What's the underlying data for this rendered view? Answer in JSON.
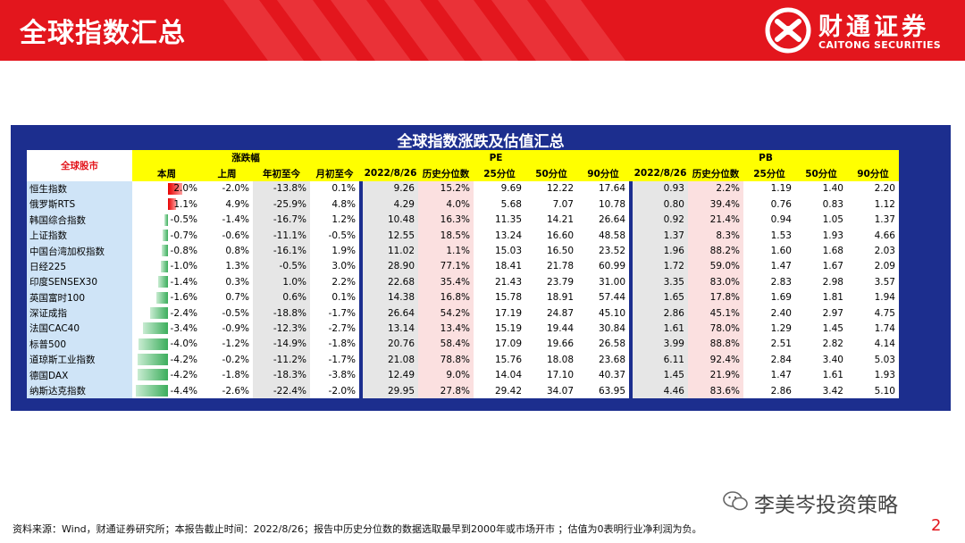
{
  "header": {
    "title": "全球指数汇总"
  },
  "logo": {
    "cn": "财通证券",
    "en": "CAITONG SECURITIES"
  },
  "panel": {
    "title": "全球指数涨跌及估值汇总"
  },
  "table": {
    "name_header": "全球股市",
    "group_change": "涨跌幅",
    "group_pe": "PE",
    "group_pb": "PB",
    "sub_change": [
      "本周",
      "上周",
      "年初至今",
      "月初至今"
    ],
    "sub_pe": [
      "2022/8/26",
      "历史分位数",
      "25分位",
      "50分位",
      "90分位"
    ],
    "sub_pb": [
      "2022/8/26",
      "历史分位数",
      "25分位",
      "50分位",
      "90分位"
    ],
    "rows": [
      {
        "name": "恒生指数",
        "bar": 2.0,
        "week": "2.0%",
        "prev": "-2.0%",
        "ytd": "-13.8%",
        "mtd": "0.1%",
        "pe": [
          "9.26",
          "15.2%",
          "9.69",
          "12.22",
          "17.64"
        ],
        "pb": [
          "0.93",
          "2.2%",
          "1.19",
          "1.40",
          "2.20"
        ]
      },
      {
        "name": "俄罗斯RTS",
        "bar": 1.1,
        "week": "1.1%",
        "prev": "4.9%",
        "ytd": "-25.9%",
        "mtd": "4.8%",
        "pe": [
          "4.29",
          "4.0%",
          "5.68",
          "7.07",
          "10.78"
        ],
        "pb": [
          "0.80",
          "39.4%",
          "0.76",
          "0.83",
          "1.12"
        ]
      },
      {
        "name": "韩国综合指数",
        "bar": -0.5,
        "week": "-0.5%",
        "prev": "-1.4%",
        "ytd": "-16.7%",
        "mtd": "1.2%",
        "pe": [
          "10.48",
          "16.3%",
          "11.35",
          "14.21",
          "26.64"
        ],
        "pb": [
          "0.92",
          "21.4%",
          "0.94",
          "1.05",
          "1.37"
        ]
      },
      {
        "name": "上证指数",
        "bar": -0.7,
        "week": "-0.7%",
        "prev": "-0.6%",
        "ytd": "-11.1%",
        "mtd": "-0.5%",
        "pe": [
          "12.55",
          "18.5%",
          "13.24",
          "16.60",
          "48.58"
        ],
        "pb": [
          "1.37",
          "8.3%",
          "1.53",
          "1.93",
          "4.66"
        ]
      },
      {
        "name": "中国台湾加权指数",
        "bar": -0.8,
        "week": "-0.8%",
        "prev": "0.8%",
        "ytd": "-16.1%",
        "mtd": "1.9%",
        "pe": [
          "11.02",
          "1.1%",
          "15.03",
          "16.50",
          "23.52"
        ],
        "pb": [
          "1.96",
          "88.2%",
          "1.60",
          "1.68",
          "2.03"
        ]
      },
      {
        "name": "日经225",
        "bar": -1.0,
        "week": "-1.0%",
        "prev": "1.3%",
        "ytd": "-0.5%",
        "mtd": "3.0%",
        "pe": [
          "28.90",
          "77.1%",
          "18.41",
          "21.78",
          "60.99"
        ],
        "pb": [
          "1.72",
          "59.0%",
          "1.47",
          "1.67",
          "2.09"
        ]
      },
      {
        "name": "印度SENSEX30",
        "bar": -1.4,
        "week": "-1.4%",
        "prev": "0.3%",
        "ytd": "1.0%",
        "mtd": "2.2%",
        "pe": [
          "22.68",
          "35.4%",
          "21.43",
          "23.79",
          "31.00"
        ],
        "pb": [
          "3.35",
          "83.0%",
          "2.83",
          "2.98",
          "3.57"
        ]
      },
      {
        "name": "英国富时100",
        "bar": -1.6,
        "week": "-1.6%",
        "prev": "0.7%",
        "ytd": "0.6%",
        "mtd": "0.1%",
        "pe": [
          "14.38",
          "16.8%",
          "15.78",
          "18.91",
          "57.44"
        ],
        "pb": [
          "1.65",
          "17.8%",
          "1.69",
          "1.81",
          "1.94"
        ]
      },
      {
        "name": "深证成指",
        "bar": -2.4,
        "week": "-2.4%",
        "prev": "-0.5%",
        "ytd": "-18.8%",
        "mtd": "-1.7%",
        "pe": [
          "26.64",
          "54.2%",
          "17.19",
          "24.87",
          "45.10"
        ],
        "pb": [
          "2.86",
          "45.1%",
          "2.40",
          "2.97",
          "4.75"
        ]
      },
      {
        "name": "法国CAC40",
        "bar": -3.4,
        "week": "-3.4%",
        "prev": "-0.9%",
        "ytd": "-12.3%",
        "mtd": "-2.7%",
        "pe": [
          "13.14",
          "13.4%",
          "15.19",
          "19.44",
          "30.84"
        ],
        "pb": [
          "1.61",
          "78.0%",
          "1.29",
          "1.45",
          "1.74"
        ]
      },
      {
        "name": "标普500",
        "bar": -4.0,
        "week": "-4.0%",
        "prev": "-1.2%",
        "ytd": "-14.9%",
        "mtd": "-1.8%",
        "pe": [
          "20.76",
          "58.4%",
          "17.09",
          "19.66",
          "26.58"
        ],
        "pb": [
          "3.99",
          "88.8%",
          "2.51",
          "2.82",
          "4.14"
        ]
      },
      {
        "name": "道琼斯工业指数",
        "bar": -4.2,
        "week": "-4.2%",
        "prev": "-0.2%",
        "ytd": "-11.2%",
        "mtd": "-1.7%",
        "pe": [
          "21.08",
          "78.8%",
          "15.76",
          "18.08",
          "23.68"
        ],
        "pb": [
          "6.11",
          "92.4%",
          "2.84",
          "3.40",
          "5.03"
        ]
      },
      {
        "name": "德国DAX",
        "bar": -4.2,
        "week": "-4.2%",
        "prev": "-1.8%",
        "ytd": "-18.3%",
        "mtd": "-3.8%",
        "pe": [
          "12.49",
          "9.0%",
          "14.04",
          "17.10",
          "40.37"
        ],
        "pb": [
          "1.45",
          "21.9%",
          "1.47",
          "1.61",
          "1.93"
        ]
      },
      {
        "name": "纳斯达克指数",
        "bar": -4.4,
        "week": "-4.4%",
        "prev": "-2.6%",
        "ytd": "-22.4%",
        "mtd": "-2.0%",
        "pe": [
          "29.95",
          "27.8%",
          "29.42",
          "34.07",
          "63.95"
        ],
        "pb": [
          "4.46",
          "83.6%",
          "2.86",
          "3.42",
          "5.10"
        ]
      }
    ]
  },
  "wechat": {
    "name": "李美岑投资策略"
  },
  "footer": {
    "source": "资料来源：Wind，财通证券研究所；本报告截止时间：2022/8/26；报告中历史分位数的数据选取最早到2000年或市场开市 ；估值为0表明行业净利润为负。"
  },
  "page": {
    "number": "2"
  },
  "colors": {
    "brand_red": "#e3161d",
    "panel_blue": "#1c2e8e",
    "header_yellow": "#ffff00",
    "name_blue": "#cfe4f7",
    "pink": "#fbe0e0",
    "gray": "#e6e6e6"
  }
}
